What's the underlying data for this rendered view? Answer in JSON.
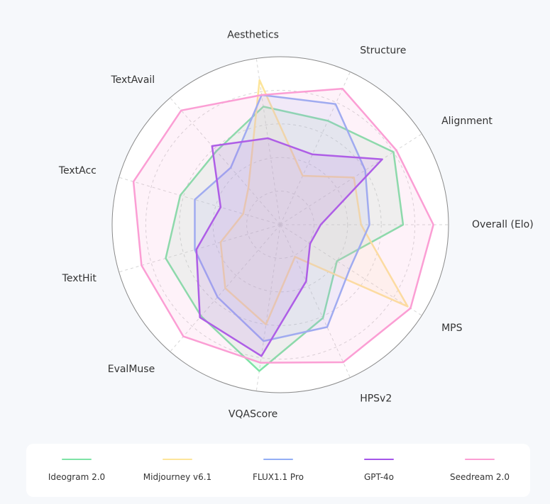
{
  "chart_data": {
    "type": "radar",
    "axes": [
      "Overall (Elo)",
      "Alignment",
      "Structure",
      "Aesthetics",
      "TextAvail",
      "TextAcc",
      "TextHit",
      "EvalMuse",
      "VQAScore",
      "HPSv2",
      "MPS"
    ],
    "rlim": [
      0,
      1
    ],
    "grid": true,
    "legend_position": "bottom",
    "series": [
      {
        "name": "Ideogram 2.0",
        "color": "#7ee3a6",
        "values": [
          0.73,
          0.8,
          0.68,
          0.71,
          0.58,
          0.62,
          0.71,
          0.72,
          0.88,
          0.61,
          0.4
        ]
      },
      {
        "name": "Midjourney v6.1",
        "color": "#fde59a",
        "values": [
          0.48,
          0.52,
          0.32,
          0.87,
          0.29,
          0.23,
          0.37,
          0.5,
          0.6,
          0.21,
          0.9
        ]
      },
      {
        "name": "FLUX1.1 Pro",
        "color": "#93aef5",
        "values": [
          0.53,
          0.6,
          0.79,
          0.78,
          0.45,
          0.53,
          0.53,
          0.57,
          0.7,
          0.67,
          0.49
        ]
      },
      {
        "name": "GPT-4o",
        "color": "#a455ea",
        "values": [
          0.24,
          0.72,
          0.46,
          0.52,
          0.62,
          0.37,
          0.52,
          0.73,
          0.79,
          0.37,
          0.21
        ]
      },
      {
        "name": "Seedream 2.0",
        "color": "#fb9ed4",
        "values": [
          0.91,
          0.82,
          0.89,
          0.78,
          0.9,
          0.91,
          0.86,
          0.88,
          0.83,
          0.9,
          0.92
        ]
      }
    ]
  }
}
